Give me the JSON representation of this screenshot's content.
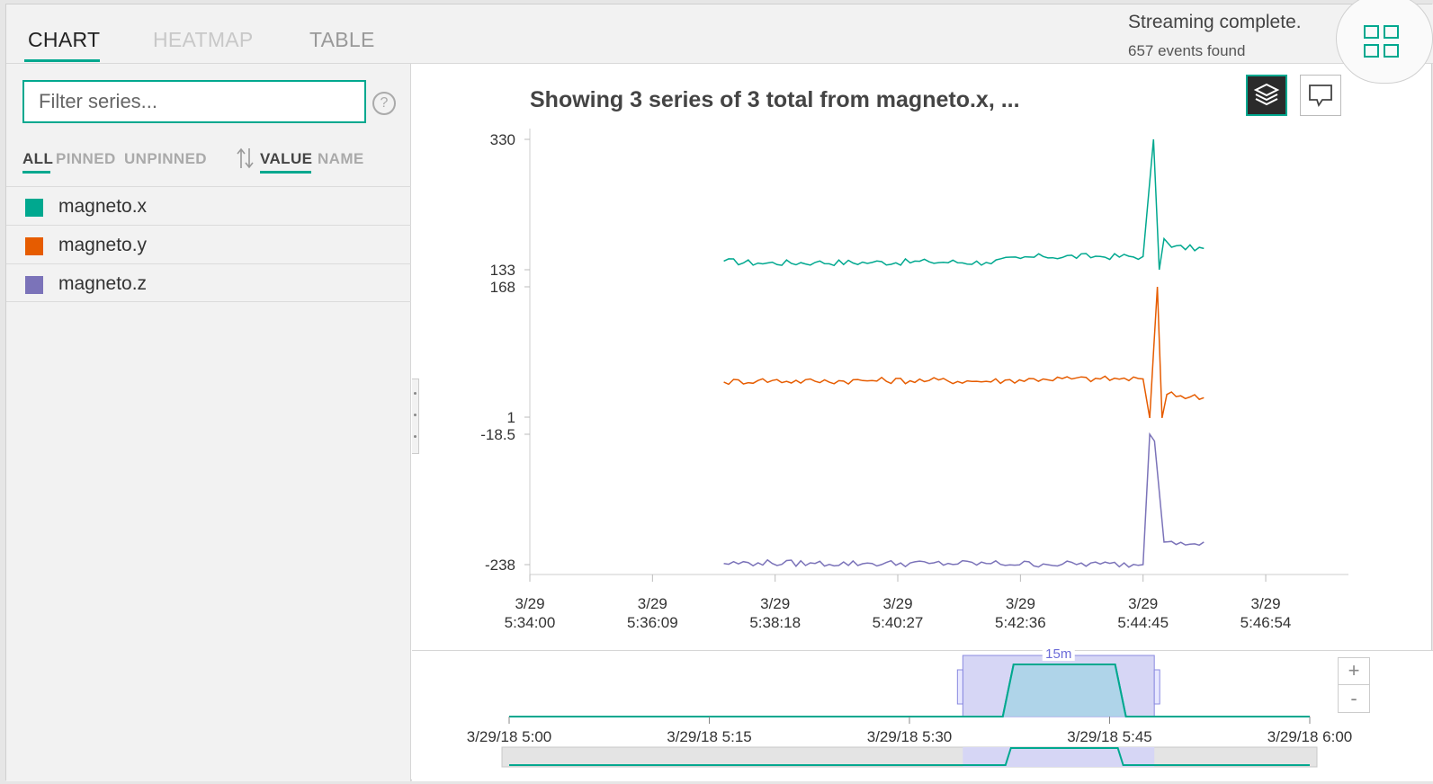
{
  "tabs": [
    {
      "label": "CHART",
      "state": "active"
    },
    {
      "label": "HEATMAP",
      "state": "disabled"
    },
    {
      "label": "TABLE",
      "state": "inactive"
    }
  ],
  "status": {
    "title": "Streaming complete.",
    "subtitle": "657 events found"
  },
  "sidebar": {
    "filter_placeholder": "Filter series...",
    "help": "?",
    "filter_tabs": [
      "ALL",
      "PINNED",
      "UNPINNED"
    ],
    "sort_tabs": [
      "VALUE",
      "NAME"
    ],
    "series": [
      {
        "name": "magneto.x",
        "color": "#00a88f"
      },
      {
        "name": "magneto.y",
        "color": "#e65c00"
      },
      {
        "name": "magneto.z",
        "color": "#7b73b9"
      }
    ]
  },
  "chart_title": "Showing 3 series of 3 total from magneto.x, ...",
  "chart_data": {
    "type": "line",
    "layout": "stacked-lanes",
    "lanes": [
      {
        "name": "magneto.x",
        "color": "#00a88f",
        "ytick_labels": [
          "330",
          "133"
        ],
        "ylim": [
          133,
          330
        ]
      },
      {
        "name": "magneto.y",
        "color": "#e65c00",
        "ytick_labels": [
          "168",
          "1"
        ],
        "ylim": [
          1,
          168
        ]
      },
      {
        "name": "magneto.z",
        "color": "#7b73b9",
        "ytick_labels": [
          "-18.5",
          "-238"
        ],
        "ylim": [
          -238,
          -18.5
        ]
      }
    ],
    "xtick_dates": [
      "3/29",
      "3/29",
      "3/29",
      "3/29",
      "3/29",
      "3/29",
      "3/29"
    ],
    "xtick_times": [
      "5:34:00",
      "5:36:09",
      "5:38:18",
      "5:40:27",
      "5:42:36",
      "5:44:45",
      "5:46:54"
    ],
    "xlim": [
      "5:34:00",
      "5:48:21"
    ],
    "data_range": [
      "5:37:24",
      "5:45:49"
    ],
    "series": [
      {
        "name": "magneto.x",
        "approx_points": [
          [
            "5:37:24",
            146
          ],
          [
            "5:38:00",
            143
          ],
          [
            "5:39:00",
            144
          ],
          [
            "5:40:00",
            144
          ],
          [
            "5:41:00",
            145
          ],
          [
            "5:42:00",
            144
          ],
          [
            "5:42:36",
            150
          ],
          [
            "5:43:00",
            153
          ],
          [
            "5:44:00",
            153
          ],
          [
            "5:44:45",
            153
          ],
          [
            "5:44:56",
            330
          ],
          [
            "5:45:02",
            133
          ],
          [
            "5:45:07",
            180
          ],
          [
            "5:45:15",
            167
          ],
          [
            "5:45:49",
            165
          ]
        ]
      },
      {
        "name": "magneto.y",
        "approx_points": [
          [
            "5:37:24",
            46
          ],
          [
            "5:38:00",
            48
          ],
          [
            "5:39:00",
            47
          ],
          [
            "5:40:00",
            48
          ],
          [
            "5:41:00",
            48
          ],
          [
            "5:42:00",
            47
          ],
          [
            "5:43:00",
            50
          ],
          [
            "5:44:00",
            50
          ],
          [
            "5:44:45",
            50
          ],
          [
            "5:44:52",
            0
          ],
          [
            "5:45:00",
            168
          ],
          [
            "5:45:05",
            0
          ],
          [
            "5:45:10",
            30
          ],
          [
            "5:45:49",
            26
          ]
        ]
      },
      {
        "name": "magneto.z",
        "approx_points": [
          [
            "5:37:24",
            -236
          ],
          [
            "5:38:00",
            -235
          ],
          [
            "5:39:00",
            -236
          ],
          [
            "5:40:00",
            -236
          ],
          [
            "5:41:00",
            -236
          ],
          [
            "5:42:00",
            -236
          ],
          [
            "5:43:00",
            -237
          ],
          [
            "5:44:00",
            -237
          ],
          [
            "5:44:45",
            -238
          ],
          [
            "5:44:52",
            -18.5
          ],
          [
            "5:44:57",
            -30
          ],
          [
            "5:45:07",
            -200
          ],
          [
            "5:45:15",
            -199
          ],
          [
            "5:45:49",
            -200
          ]
        ]
      }
    ]
  },
  "navigator": {
    "ticks": [
      "3/29/18 5:00",
      "3/29/18 5:15",
      "3/29/18 5:30",
      "3/29/18 5:45",
      "3/29/18 6:00"
    ],
    "range_label": "15m",
    "availability": {
      "start": "5:37:24",
      "end": "5:45:49"
    }
  },
  "zoom": {
    "plus": "+",
    "minus": "-"
  }
}
